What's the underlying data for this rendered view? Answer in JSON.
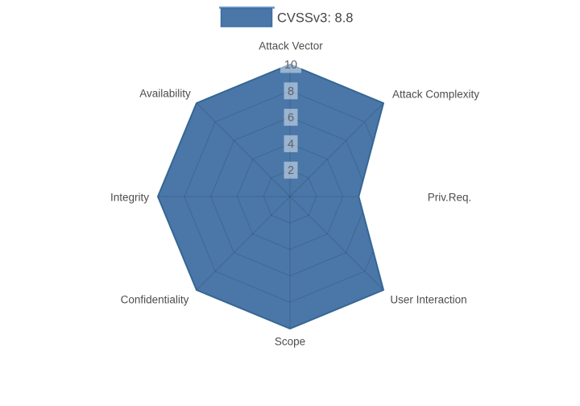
{
  "chart_data": {
    "type": "radar",
    "title": "",
    "legend_label": "CVSSv3: 8.8",
    "legend_position": "top-center",
    "categories": [
      "Attack Vector",
      "Attack Complexity",
      "Priv.Req.",
      "User Interaction",
      "Scope",
      "Confidentiality",
      "Integrity",
      "Availability"
    ],
    "series": [
      {
        "name": "CVSSv3: 8.8",
        "values": [
          10,
          10,
          5.2,
          10,
          10,
          10,
          10,
          10
        ]
      }
    ],
    "radial_ticks": [
      2,
      4,
      6,
      8,
      10
    ],
    "r_range": [
      0,
      10
    ],
    "grid": true,
    "colors": {
      "fill": "#4A77A8",
      "stroke": "#356694",
      "legend_line": "#6496C3",
      "legend_swatch_border": "#3A6EA5",
      "grid_line": "rgba(0,0,0,0.14)",
      "axis_label": "#4d4d4d",
      "tick_label": "#5a6370",
      "tick_bg": "rgba(255,255,255,0.45)",
      "legend_text": "#444444",
      "background": "#ffffff"
    }
  },
  "legend": {
    "label": "CVSSv3: 8.8"
  }
}
